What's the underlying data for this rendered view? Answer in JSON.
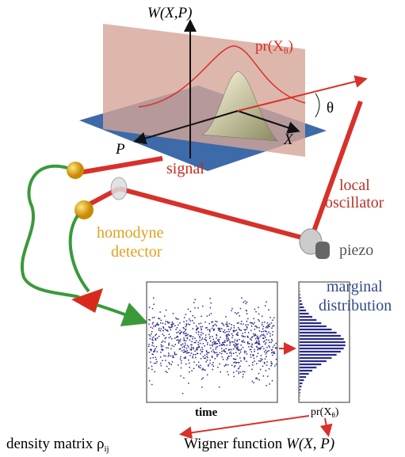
{
  "labels": {
    "wigner_axis": "W(X,P)",
    "marginal_curve": {
      "main": "pr(X",
      "sub": "θ",
      "tail": ")"
    },
    "angle": "θ",
    "x_axis": "X",
    "p_axis": "P",
    "signal": "signal",
    "local_oscillator": [
      "local",
      "oscillator"
    ],
    "homodyne_detector": [
      "homodyne",
      "detector"
    ],
    "piezo": "piezo",
    "marginal_distribution": [
      "marginal",
      "distribution"
    ],
    "time": "time",
    "histogram_axis": {
      "main": "pr(X",
      "sub": "θ",
      "tail": ")"
    },
    "density_matrix": {
      "main": "density matrix ρ",
      "sub": "ij"
    },
    "wigner_function": {
      "main": "Wigner function ",
      "italic": "W(X, P)"
    }
  }
}
